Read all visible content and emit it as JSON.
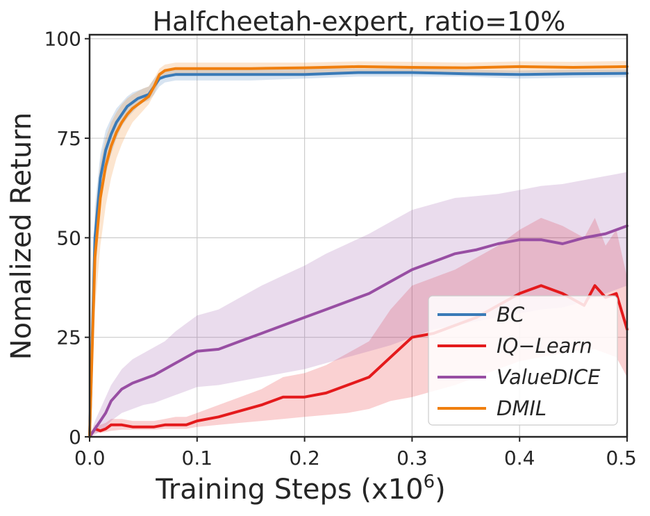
{
  "chart_data": {
    "type": "line",
    "title": "Halfcheetah-expert, ratio=10%",
    "xlabel": "Training Steps (x10",
    "xlabel_exponent": "6",
    "xlabel_suffix": ")",
    "ylabel": "Nomalized Return",
    "xlim": [
      0.0,
      0.5
    ],
    "ylim": [
      0,
      101
    ],
    "xticks": [
      "0.0",
      "0.1",
      "0.2",
      "0.3",
      "0.4",
      "0.5"
    ],
    "yticks": [
      "0",
      "25",
      "50",
      "75",
      "100"
    ],
    "grid": true,
    "legend_position": "lower-right",
    "series": [
      {
        "name": "BC",
        "color": "#3a7ab7",
        "x": [
          0,
          0.005,
          0.01,
          0.015,
          0.02,
          0.025,
          0.03,
          0.035,
          0.04,
          0.045,
          0.05,
          0.055,
          0.06,
          0.065,
          0.07,
          0.08,
          0.09,
          0.1,
          0.12,
          0.15,
          0.2,
          0.25,
          0.3,
          0.35,
          0.4,
          0.45,
          0.5
        ],
        "y": [
          0,
          50,
          65,
          72,
          76,
          79,
          81,
          83,
          84,
          85,
          85.5,
          86,
          88,
          90,
          90.5,
          91,
          91,
          91,
          91,
          91,
          91,
          91.5,
          91.5,
          91.2,
          91,
          91.2,
          91.3
        ],
        "lower": [
          0,
          40,
          58,
          66,
          71,
          75,
          78,
          80,
          81.5,
          83,
          84,
          84.5,
          86,
          88,
          89,
          89.5,
          89.5,
          89.5,
          89.5,
          89.5,
          90,
          90.5,
          90.5,
          90.5,
          90,
          90.2,
          90.3
        ],
        "upper": [
          0,
          58,
          71,
          77,
          80,
          82.5,
          84,
          85.5,
          86.5,
          87,
          87.5,
          88,
          90,
          91.5,
          92,
          92.5,
          92.5,
          92.5,
          92.5,
          92.5,
          92.5,
          92.5,
          92.5,
          92.2,
          92,
          92.2,
          92.3
        ]
      },
      {
        "name": "IQ−Learn",
        "color": "#e41a1c",
        "x": [
          0,
          0.005,
          0.01,
          0.015,
          0.02,
          0.03,
          0.04,
          0.05,
          0.06,
          0.07,
          0.08,
          0.09,
          0.1,
          0.12,
          0.14,
          0.16,
          0.18,
          0.2,
          0.22,
          0.24,
          0.26,
          0.28,
          0.3,
          0.32,
          0.34,
          0.36,
          0.38,
          0.4,
          0.42,
          0.44,
          0.46,
          0.47,
          0.48,
          0.49,
          0.5
        ],
        "y": [
          0,
          2,
          1.5,
          2,
          3,
          3,
          2.5,
          2.5,
          2.5,
          3,
          3,
          3,
          4,
          5,
          6.5,
          8,
          10,
          10,
          11,
          13,
          15,
          20,
          25,
          26,
          28,
          30,
          33,
          36,
          38,
          36,
          33,
          38,
          35,
          36,
          27
        ],
        "lower": [
          0,
          1,
          1,
          1.2,
          1.5,
          1.8,
          1.8,
          1.8,
          1.8,
          2,
          2,
          2,
          2.5,
          3,
          3.5,
          4,
          4.5,
          5,
          5.5,
          6,
          7,
          9,
          10,
          11.5,
          13,
          15,
          17,
          19,
          20,
          21,
          22,
          22,
          21,
          20,
          15
        ],
        "upper": [
          0,
          3,
          3,
          3.5,
          4.5,
          4.5,
          4,
          4,
          4,
          4.5,
          5,
          5,
          6,
          8,
          10,
          12,
          15,
          16,
          18,
          21,
          24,
          32,
          38,
          40,
          42,
          45,
          48,
          52,
          55,
          53,
          50,
          55,
          48,
          52,
          40
        ]
      },
      {
        "name": "ValueDICE",
        "color": "#984ea3",
        "x": [
          0,
          0.005,
          0.01,
          0.015,
          0.02,
          0.03,
          0.04,
          0.05,
          0.06,
          0.07,
          0.08,
          0.09,
          0.1,
          0.12,
          0.14,
          0.16,
          0.18,
          0.2,
          0.22,
          0.24,
          0.26,
          0.28,
          0.3,
          0.32,
          0.34,
          0.36,
          0.38,
          0.4,
          0.42,
          0.44,
          0.46,
          0.48,
          0.5
        ],
        "y": [
          0,
          2,
          4,
          6,
          9,
          12,
          13.5,
          14.5,
          15.5,
          17,
          18.5,
          20,
          21.5,
          22,
          24,
          26,
          28,
          30,
          32,
          34,
          36,
          39,
          42,
          44,
          46,
          47,
          48.5,
          49.5,
          49.5,
          48.5,
          50,
          51,
          53
        ],
        "lower": [
          0,
          0.5,
          1.5,
          2.5,
          4,
          6,
          7,
          8,
          8.5,
          9.5,
          10.5,
          11.5,
          12.5,
          13,
          14,
          15,
          16,
          17,
          18.5,
          20,
          21.5,
          23,
          25,
          27,
          28,
          29,
          30,
          31,
          32,
          32.5,
          34,
          36,
          38
        ],
        "upper": [
          0,
          4,
          7,
          10,
          13,
          17,
          19.5,
          21,
          22.5,
          24,
          26.5,
          28.5,
          30.5,
          32,
          35,
          38,
          40.5,
          43,
          46,
          48.5,
          51,
          54,
          57,
          58.5,
          60,
          60.5,
          61,
          62,
          63,
          63.5,
          64.5,
          65.5,
          66.5
        ]
      },
      {
        "name": "DMIL",
        "color": "#f07f0e",
        "x": [
          0,
          0.005,
          0.01,
          0.015,
          0.02,
          0.025,
          0.03,
          0.035,
          0.04,
          0.045,
          0.05,
          0.055,
          0.06,
          0.065,
          0.07,
          0.08,
          0.09,
          0.1,
          0.12,
          0.15,
          0.2,
          0.25,
          0.3,
          0.35,
          0.4,
          0.45,
          0.5
        ],
        "y": [
          0,
          45,
          60,
          68,
          73,
          76.5,
          79,
          81,
          82.5,
          83.5,
          84.5,
          85.5,
          88,
          91,
          92,
          92.5,
          92.5,
          92.5,
          92.5,
          92.5,
          92.7,
          93,
          92.8,
          92.7,
          93,
          92.8,
          93
        ],
        "lower": [
          0,
          32,
          48,
          58,
          65,
          70,
          73.5,
          76.5,
          79,
          80.5,
          82,
          83.5,
          86,
          89.5,
          90.5,
          91,
          91,
          91,
          91,
          91,
          91.3,
          91.5,
          91.4,
          91.3,
          91.5,
          91.4,
          91.6
        ],
        "upper": [
          0,
          55,
          69,
          75,
          79,
          81.5,
          83.5,
          85,
          86,
          86.8,
          87.5,
          88,
          90,
          92.5,
          93.5,
          94,
          94,
          94,
          94,
          94,
          94,
          94.3,
          94.2,
          94,
          94.3,
          94.2,
          94.4
        ]
      }
    ]
  }
}
